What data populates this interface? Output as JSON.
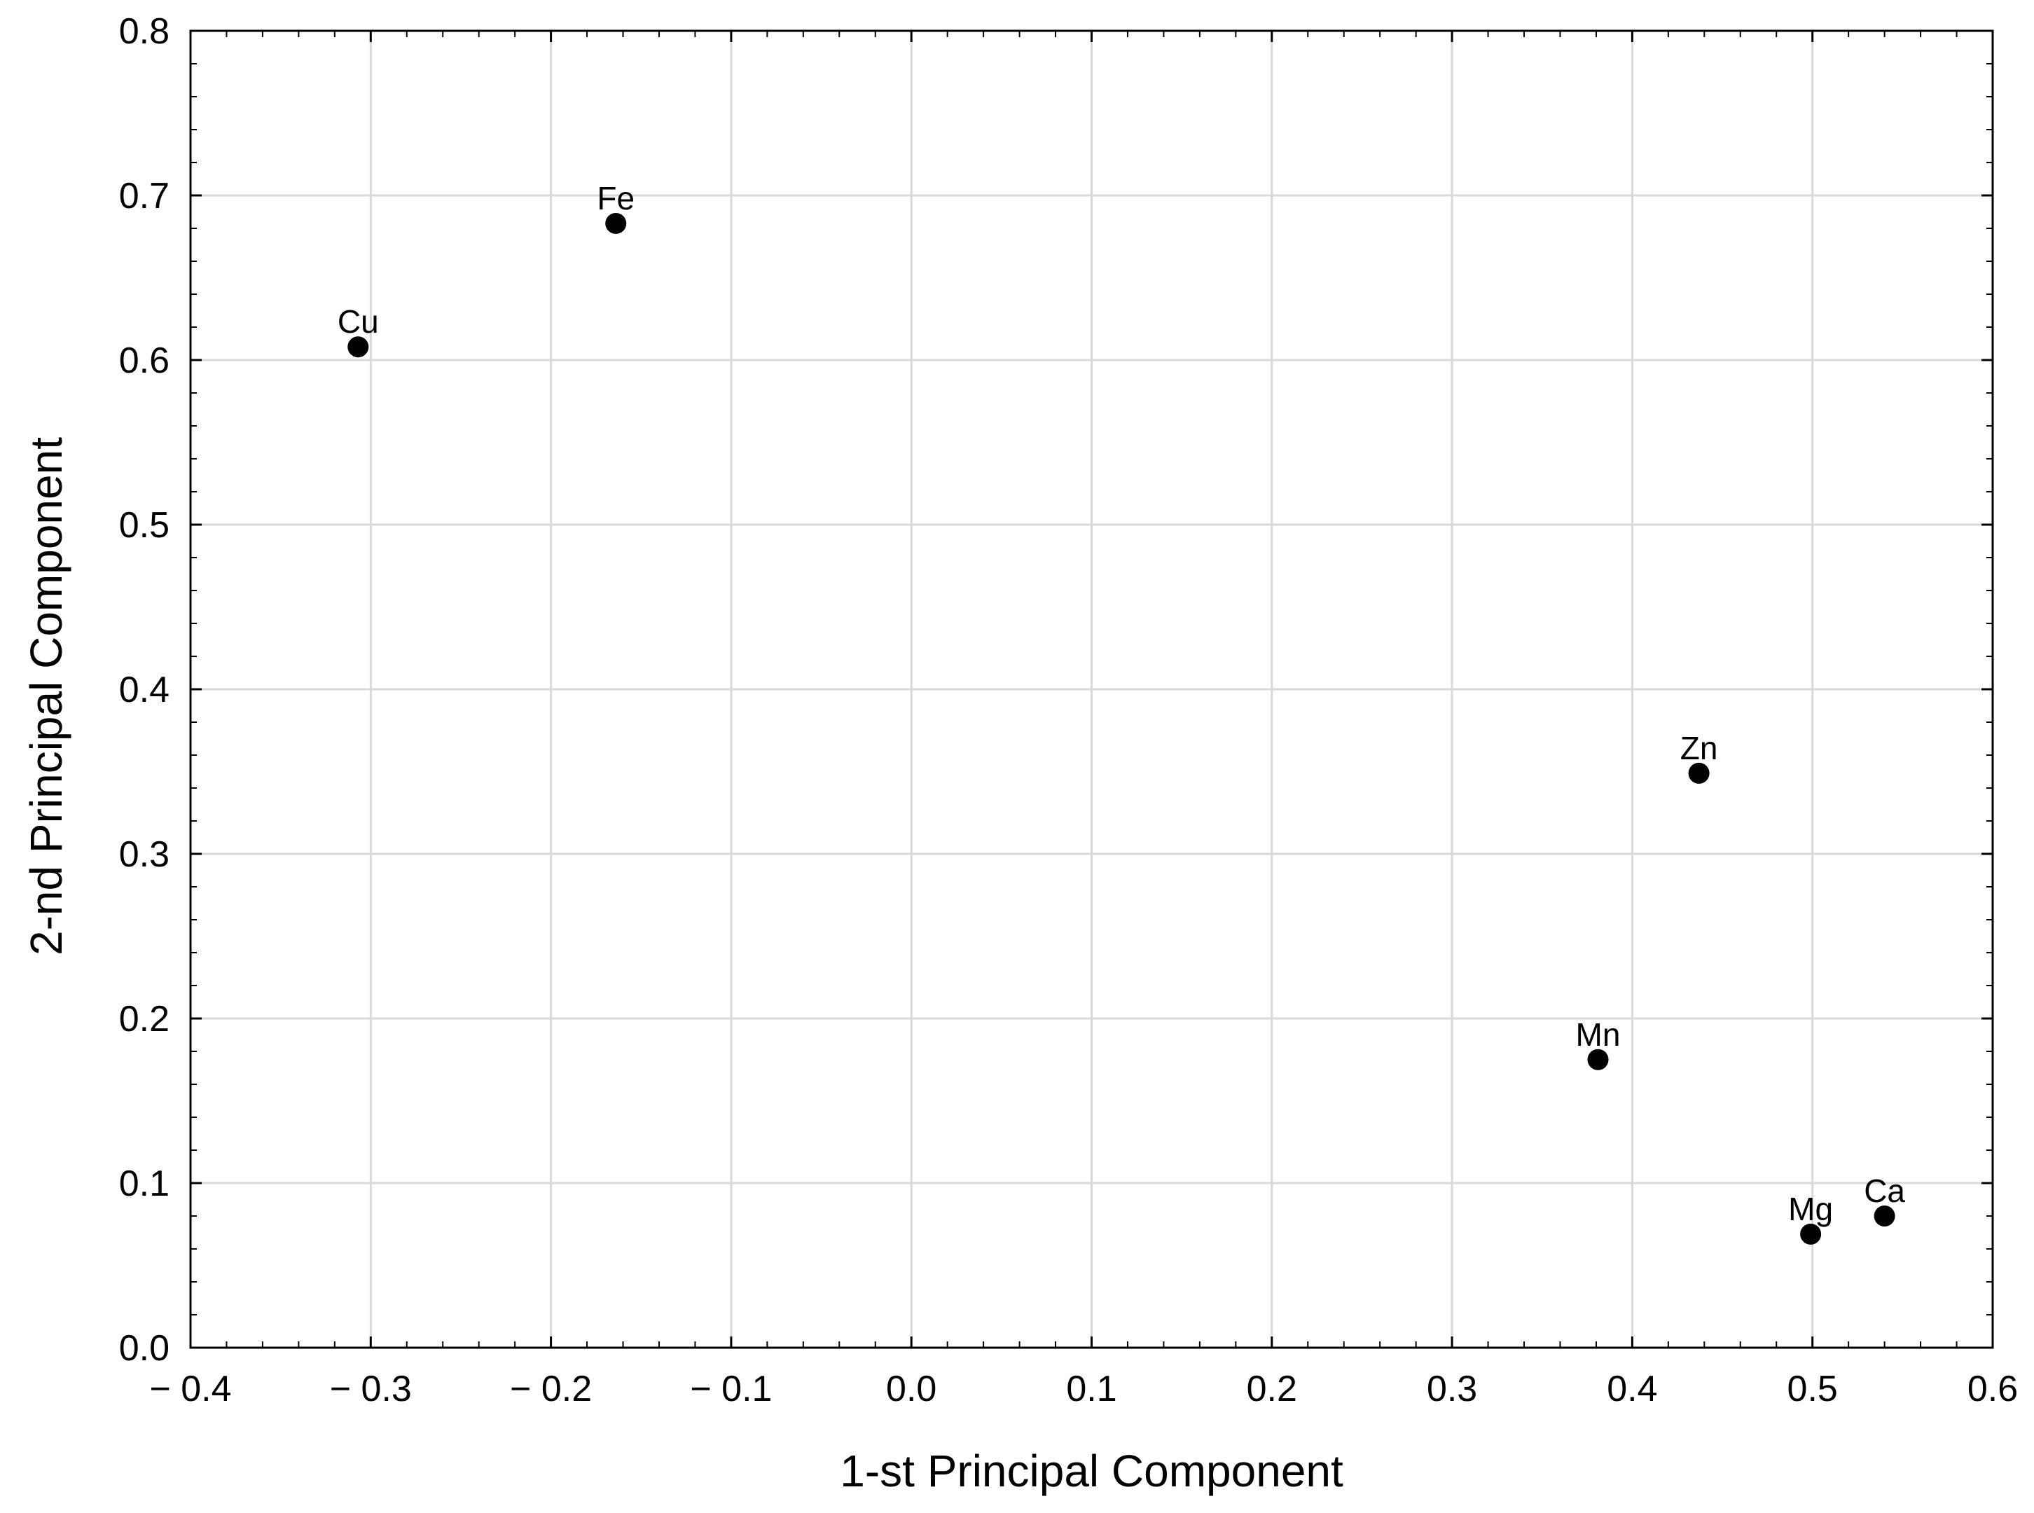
{
  "chart_data": {
    "type": "scatter",
    "title": "",
    "xlabel": "1-st Principal Component",
    "ylabel": "2-nd Principal Component",
    "xlim": [
      -0.4,
      0.6
    ],
    "ylim": [
      0.0,
      0.8
    ],
    "xticks": [
      -0.4,
      -0.3,
      -0.2,
      -0.1,
      0.0,
      0.1,
      0.2,
      0.3,
      0.4,
      0.5,
      0.6
    ],
    "xtick_labels": [
      "− 0.4",
      "− 0.3",
      "− 0.2",
      "− 0.1",
      "0.0",
      "0.1",
      "0.2",
      "0.3",
      "0.4",
      "0.5",
      "0.6"
    ],
    "yticks": [
      0.0,
      0.1,
      0.2,
      0.3,
      0.4,
      0.5,
      0.6,
      0.7,
      0.8
    ],
    "ytick_labels": [
      "0.0",
      "0.1",
      "0.2",
      "0.3",
      "0.4",
      "0.5",
      "0.6",
      "0.7",
      "0.8"
    ],
    "grid": true,
    "points": [
      {
        "label": "Cu",
        "x": -0.307,
        "y": 0.608
      },
      {
        "label": "Fe",
        "x": -0.164,
        "y": 0.683
      },
      {
        "label": "Zn",
        "x": 0.437,
        "y": 0.349
      },
      {
        "label": "Mn",
        "x": 0.381,
        "y": 0.175
      },
      {
        "label": "Mg",
        "x": 0.499,
        "y": 0.069
      },
      {
        "label": "Ca",
        "x": 0.54,
        "y": 0.08
      }
    ],
    "colors": {
      "marker": "#000000",
      "grid": "#d9d9d9",
      "axis": "#000000"
    }
  }
}
